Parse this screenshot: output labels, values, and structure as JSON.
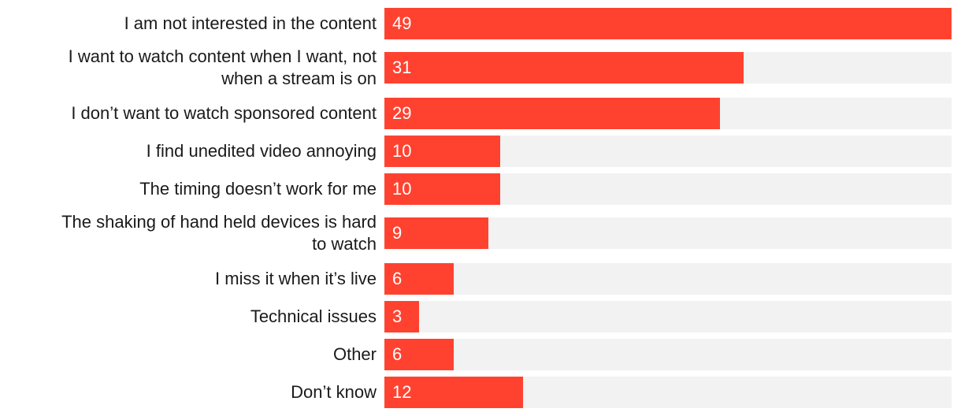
{
  "chart_data": {
    "type": "bar",
    "orientation": "horizontal",
    "categories": [
      "I am not interested in the content",
      "I want to watch content when I want, not when a stream is on",
      "I don’t want to watch sponsored content",
      "I find unedited video annoying",
      "The timing doesn’t work for me",
      "The shaking of hand held devices is hard to watch",
      "I miss it when it’s live",
      "Technical issues",
      "Other",
      "Don’t know"
    ],
    "label_lines": [
      [
        "I am not interested in the content"
      ],
      [
        "I want to watch content when I want, not",
        "when a stream is on"
      ],
      [
        "I don’t want to watch sponsored content"
      ],
      [
        "I find unedited video annoying"
      ],
      [
        "The timing doesn’t work for me"
      ],
      [
        "The shaking of hand held devices is hard",
        "to watch"
      ],
      [
        "I miss it when it’s live"
      ],
      [
        "Technical issues"
      ],
      [
        "Other"
      ],
      [
        "Don’t know"
      ]
    ],
    "values": [
      49,
      31,
      29,
      10,
      10,
      9,
      6,
      3,
      6,
      12
    ],
    "xlim": [
      0,
      49
    ],
    "title": "",
    "xlabel": "",
    "ylabel": "",
    "grid": false,
    "legend": "none"
  },
  "colors": {
    "bar": "#ff4230",
    "track": "#f2f2f2",
    "label_text": "#1a1a1a",
    "value_text": "#ffffff"
  }
}
